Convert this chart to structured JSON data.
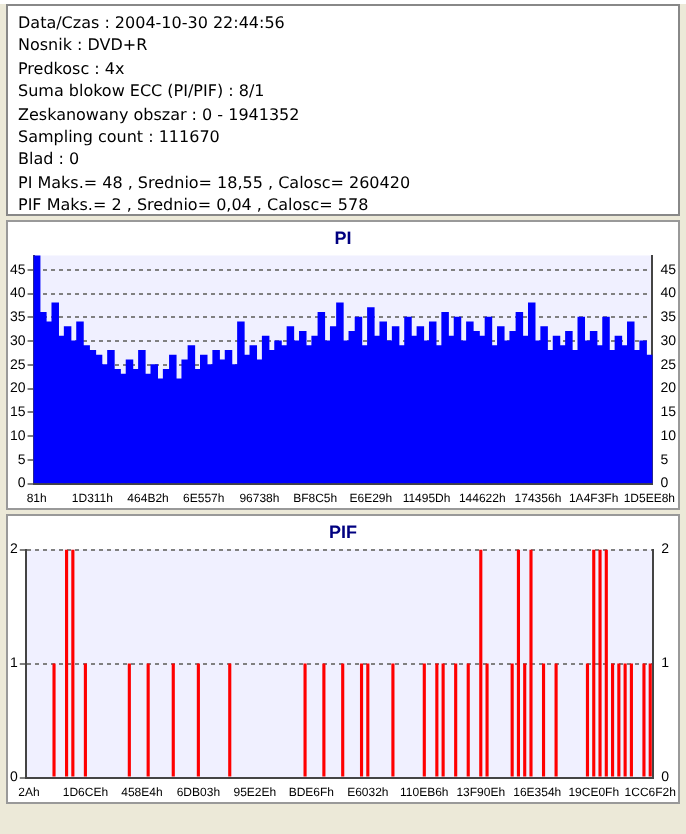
{
  "chart_data": [
    {
      "type": "other",
      "annotations": [
        "Data/Czas : 2004-10-30 22:44:56",
        "Nosnik : DVD+R",
        "Predkosc : 4x",
        "Suma blokow ECC (PI/PIF) : 8/1",
        "Zeskanowany obszar : 0 - 1941352",
        "Sampling count : 111670",
        "Blad : 0",
        "PI Maks.= 48 , Srednio= 18,55 , Calosc= 260420",
        "PIF Maks.= 2 , Srednio= 0,04 , Calosc= 578"
      ]
    },
    {
      "type": "bar",
      "title": "PI",
      "color": "#0000ff",
      "grid": "y",
      "ylim": [
        0,
        48
      ],
      "yticks": [
        0,
        5,
        10,
        15,
        20,
        25,
        30,
        35,
        40,
        45
      ],
      "y2lim": [
        0,
        48
      ],
      "y2ticks": [
        0,
        5,
        10,
        15,
        20,
        25,
        30,
        35,
        40,
        45
      ],
      "categories": [
        "81h",
        null,
        null,
        null,
        null,
        null,
        null,
        null,
        null,
        "1D311h",
        null,
        null,
        null,
        null,
        null,
        null,
        null,
        null,
        "464B2h",
        null,
        null,
        null,
        null,
        null,
        null,
        null,
        null,
        "6E557h",
        null,
        null,
        null,
        null,
        null,
        null,
        null,
        null,
        "96738h",
        null,
        null,
        null,
        null,
        null,
        null,
        null,
        null,
        "BF8C5h",
        null,
        null,
        null,
        null,
        null,
        null,
        null,
        null,
        "E6E29h",
        null,
        null,
        null,
        null,
        null,
        null,
        null,
        null,
        "11495Dh",
        null,
        null,
        null,
        null,
        null,
        null,
        null,
        null,
        "144622h",
        null,
        null,
        null,
        null,
        null,
        null,
        null,
        null,
        "174356h",
        null,
        null,
        null,
        null,
        null,
        null,
        null,
        null,
        "1A4F3Fh",
        null,
        null,
        null,
        null,
        null,
        null,
        null,
        null,
        "1D5EE8h"
      ],
      "values": [
        48,
        36,
        34,
        38,
        31,
        33,
        30,
        34,
        29,
        28,
        27,
        25,
        28,
        24,
        23,
        26,
        24,
        28,
        23,
        25,
        22,
        24,
        27,
        22,
        26,
        29,
        24,
        27,
        25,
        28,
        26,
        28,
        25,
        34,
        27,
        29,
        26,
        31,
        28,
        30,
        29,
        33,
        30,
        32,
        29,
        31,
        36,
        30,
        33,
        38,
        30,
        32,
        35,
        29,
        37,
        31,
        34,
        30,
        33,
        29,
        35,
        31,
        33,
        30,
        34,
        29,
        36,
        31,
        35,
        30,
        34,
        32,
        31,
        35,
        29,
        33,
        30,
        32,
        36,
        31,
        38,
        30,
        33,
        28,
        31,
        29,
        32,
        28,
        35,
        30,
        32,
        29,
        35,
        28,
        31,
        29,
        34,
        28,
        30,
        27
      ]
    },
    {
      "type": "bar",
      "title": "PIF",
      "color": "#ff0000",
      "grid": "y",
      "ylim": [
        0,
        2
      ],
      "yticks": [
        0,
        1,
        2
      ],
      "y2lim": [
        0,
        2
      ],
      "y2ticks": [
        0,
        1,
        2
      ],
      "categories": [
        "2Ah",
        null,
        null,
        null,
        null,
        null,
        null,
        null,
        null,
        "1D6CEh",
        null,
        null,
        null,
        null,
        null,
        null,
        null,
        null,
        "458E4h",
        null,
        null,
        null,
        null,
        null,
        null,
        null,
        null,
        "6DB03h",
        null,
        null,
        null,
        null,
        null,
        null,
        null,
        null,
        "95E2Eh",
        null,
        null,
        null,
        null,
        null,
        null,
        null,
        null,
        "BDE6Fh",
        null,
        null,
        null,
        null,
        null,
        null,
        null,
        null,
        "E6032h",
        null,
        null,
        null,
        null,
        null,
        null,
        null,
        null,
        "110EB6h",
        null,
        null,
        null,
        null,
        null,
        null,
        null,
        null,
        "13F90Eh",
        null,
        null,
        null,
        null,
        null,
        null,
        null,
        null,
        "16E354h",
        null,
        null,
        null,
        null,
        null,
        null,
        null,
        null,
        "19CE0Fh",
        null,
        null,
        null,
        null,
        null,
        null,
        null,
        null,
        "1CC6F2h"
      ],
      "values": [
        0,
        0,
        0,
        0,
        1,
        0,
        2,
        2,
        0,
        1,
        0,
        0,
        0,
        0,
        0,
        0,
        1,
        0,
        0,
        1,
        0,
        0,
        0,
        1,
        0,
        0,
        0,
        1,
        0,
        0,
        0,
        0,
        1,
        0,
        0,
        0,
        0,
        0,
        0,
        0,
        0,
        0,
        0,
        0,
        1,
        0,
        0,
        1,
        0,
        0,
        1,
        0,
        0,
        1,
        1,
        0,
        0,
        0,
        1,
        0,
        0,
        0,
        0,
        1,
        0,
        1,
        1,
        0,
        1,
        0,
        1,
        0,
        2,
        1,
        0,
        0,
        0,
        1,
        2,
        1,
        2,
        0,
        1,
        0,
        1,
        0,
        0,
        0,
        0,
        1,
        2,
        2,
        2,
        1,
        1,
        1,
        1,
        0,
        1,
        1
      ]
    }
  ]
}
